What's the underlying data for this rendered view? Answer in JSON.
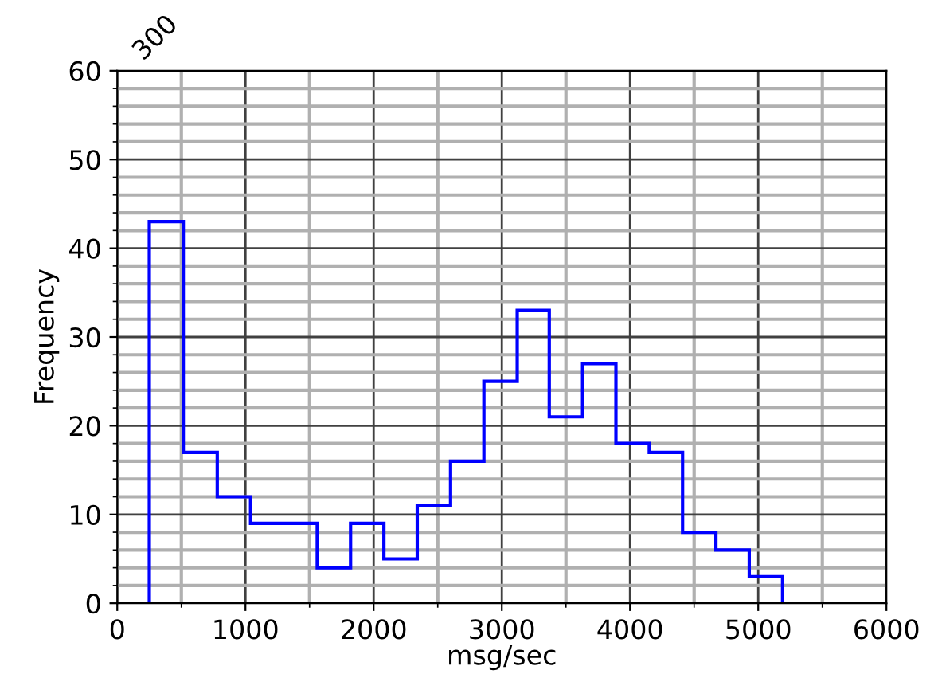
{
  "chart_data": {
    "type": "histogram",
    "xlabel": "msg/sec",
    "ylabel": "Frequency",
    "bins": [
      250,
      515,
      780,
      1040,
      1300,
      1560,
      1820,
      2080,
      2340,
      2600,
      2860,
      3120,
      3370,
      3630,
      3890,
      4150,
      4410,
      4670,
      4930,
      5190
    ],
    "values": [
      43,
      17,
      12,
      9,
      9,
      4,
      9,
      5,
      11,
      16,
      25,
      33,
      21,
      27,
      18,
      17,
      8,
      6,
      3
    ],
    "color": "#0000ff",
    "xlim": [
      0,
      6000
    ],
    "xticks": [
      0,
      1000,
      2000,
      3000,
      4000,
      5000,
      6000
    ],
    "ylim": [
      0,
      60
    ],
    "yticks": [
      0,
      10,
      20,
      30,
      40,
      50,
      60
    ],
    "grid": true,
    "annotations": [
      "300"
    ]
  }
}
